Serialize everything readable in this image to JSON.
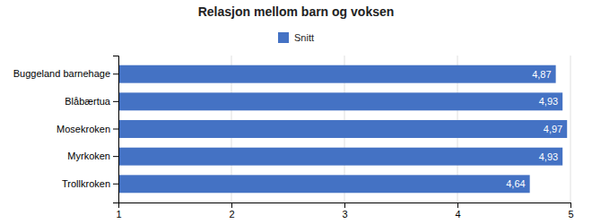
{
  "chart_data": {
    "type": "bar",
    "orientation": "horizontal",
    "title": "Relasjon mellom barn og voksen",
    "categories": [
      "Buggeland barnehage",
      "Blåbærtua",
      "Mosekroken",
      "Myrkoken",
      "Trollkroken"
    ],
    "series": [
      {
        "name": "Snitt",
        "color": "#4472C4",
        "values": [
          4.87,
          4.93,
          4.97,
          4.93,
          4.64
        ],
        "value_labels": [
          "4,87",
          "4,93",
          "4,97",
          "4,93",
          "4,64"
        ]
      }
    ],
    "xlim": [
      1,
      5
    ],
    "xticks": [
      1,
      2,
      3,
      4,
      5
    ],
    "grid": true,
    "legend": "top",
    "data_labels": true
  }
}
